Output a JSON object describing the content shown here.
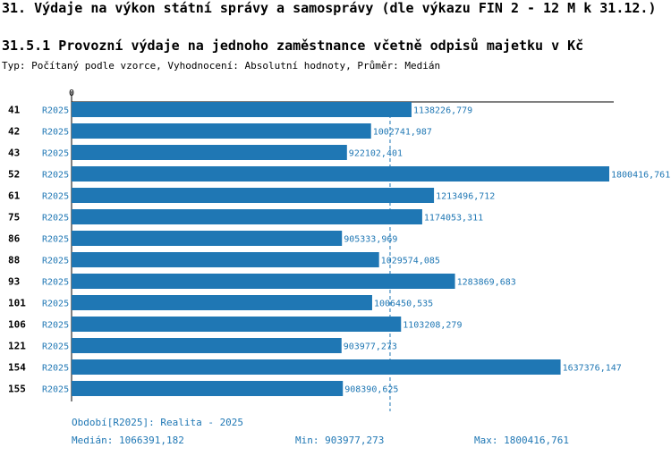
{
  "title": "31. Výdaje na výkon státní správy a samosprávy (dle výkazu FIN 2 - 12 M k 31.12.)",
  "subtitle": "31.5.1 Provozní výdaje na jednoho zaměstnance včetně odpisů majetku v Kč",
  "type_line": "Typ: Počítaný podle vzorce, Vyhodnocení: Absolutní hodnoty, Průměr: Medián",
  "colors": {
    "bar": "#1f77b4",
    "label": "#1f77b4",
    "median_line": "#1f77b4"
  },
  "chart_data": {
    "type": "bar",
    "orientation": "horizontal",
    "x_tick_label": "0",
    "categories": [
      "41",
      "42",
      "43",
      "52",
      "61",
      "75",
      "86",
      "88",
      "93",
      "101",
      "106",
      "121",
      "154",
      "155"
    ],
    "series_labels": [
      "R2025",
      "R2025",
      "R2025",
      "R2025",
      "R2025",
      "R2025",
      "R2025",
      "R2025",
      "R2025",
      "R2025",
      "R2025",
      "R2025",
      "R2025",
      "R2025"
    ],
    "values": [
      1138226.779,
      1002741.987,
      922102.401,
      1800416.761,
      1213496.712,
      1174053.311,
      905333.969,
      1029574.085,
      1283869.683,
      1006450.535,
      1103208.279,
      903977.273,
      1637376.147,
      908390.625
    ],
    "value_labels": [
      "1138226,779",
      "1002741,987",
      "922102,401",
      "1800416,761",
      "1213496,712",
      "1174053,311",
      "905333,969",
      "1029574,085",
      "1283869,683",
      "1006450,535",
      "1103208,279",
      "903977,273",
      "1637376,147",
      "908390,625"
    ],
    "xlim": [
      0,
      1800416.761
    ],
    "median_value": 1066391.182
  },
  "footer": {
    "period": "Období[R2025]: Realita - 2025",
    "median": "Medián: 1066391,182",
    "min": "Min: 903977,273",
    "max": "Max: 1800416,761"
  }
}
